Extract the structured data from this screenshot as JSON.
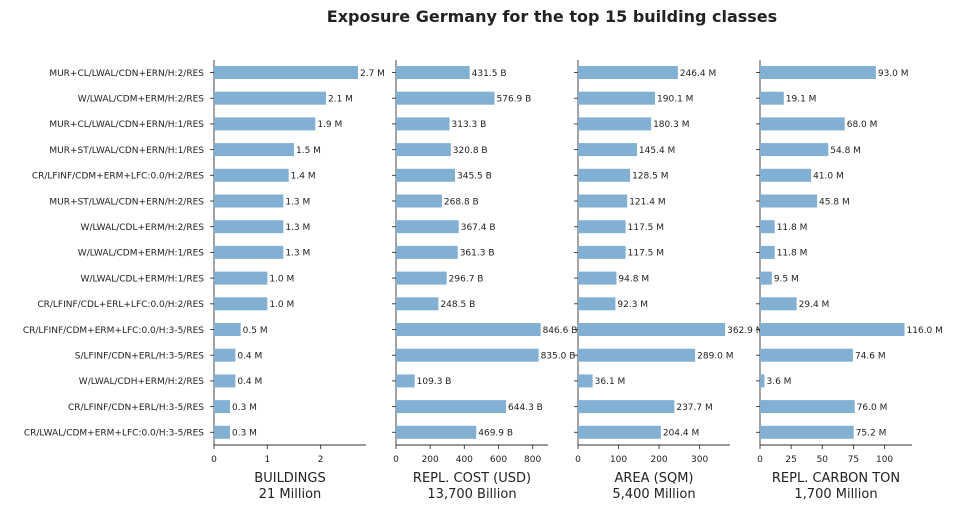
{
  "title": "Exposure Germany for the top 15 building classes",
  "chart_data": {
    "type": "bar",
    "orientation": "horizontal",
    "title": "Exposure Germany for the top 15 building classes",
    "categories": [
      "MUR+CL/LWAL/CDN+ERN/H:2/RES",
      "W/LWAL/CDM+ERM/H:2/RES",
      "MUR+CL/LWAL/CDN+ERN/H:1/RES",
      "MUR+ST/LWAL/CDN+ERN/H:1/RES",
      "CR/LFINF/CDM+ERM+LFC:0.0/H:2/RES",
      "MUR+ST/LWAL/CDN+ERN/H:2/RES",
      "W/LWAL/CDL+ERM/H:2/RES",
      "W/LWAL/CDM+ERM/H:1/RES",
      "W/LWAL/CDL+ERM/H:1/RES",
      "CR/LFINF/CDL+ERL+LFC:0.0/H:2/RES",
      "CR/LFINF/CDM+ERM+LFC:0.0/H:3-5/RES",
      "S/LFINF/CDN+ERL/H:3-5/RES",
      "W/LWAL/CDH+ERM/H:2/RES",
      "CR/LFINF/CDN+ERL/H:3-5/RES",
      "CR/LWAL/CDM+ERM+LFC:0.0/H:3-5/RES"
    ],
    "bar_color": "#81b0d3",
    "panels": [
      {
        "xlabel": "BUILDINGS",
        "total": "21 Million",
        "xlim": [
          0,
          2.85
        ],
        "ticks": [
          0,
          1,
          2
        ],
        "tick_labels": [
          "0",
          "1",
          "2"
        ],
        "values": [
          2.7,
          2.1,
          1.9,
          1.5,
          1.4,
          1.3,
          1.3,
          1.3,
          1.0,
          1.0,
          0.5,
          0.4,
          0.4,
          0.3,
          0.3
        ],
        "labels": [
          "2.7 M",
          "2.1 M",
          "1.9 M",
          "1.5 M",
          "1.4 M",
          "1.3 M",
          "1.3 M",
          "1.3 M",
          "1.0 M",
          "1.0 M",
          "0.5 M",
          "0.4 M",
          "0.4 M",
          "0.3 M",
          "0.3 M"
        ]
      },
      {
        "xlabel": "REPL. COST (USD)",
        "total": "13,700 Billion",
        "xlim": [
          0,
          890
        ],
        "ticks": [
          0,
          200,
          400,
          600,
          800
        ],
        "tick_labels": [
          "0",
          "200",
          "400",
          "600",
          "800"
        ],
        "values": [
          431.5,
          576.9,
          313.3,
          320.8,
          345.5,
          268.8,
          367.4,
          361.3,
          296.7,
          248.5,
          846.6,
          835.0,
          109.3,
          644.3,
          469.9
        ],
        "labels": [
          "431.5 B",
          "576.9 B",
          "313.3 B",
          "320.8 B",
          "345.5 B",
          "268.8 B",
          "367.4 B",
          "361.3 B",
          "296.7 B",
          "248.5 B",
          "846.6 B",
          "835.0 B",
          "109.3 B",
          "644.3 B",
          "469.9 B"
        ]
      },
      {
        "xlabel": "AREA (SQM)",
        "total": "5,400 Million",
        "xlim": [
          0,
          375
        ],
        "ticks": [
          0,
          100,
          200,
          300
        ],
        "tick_labels": [
          "0",
          "100",
          "200",
          "300"
        ],
        "values": [
          246.4,
          190.1,
          180.3,
          145.4,
          128.5,
          121.4,
          117.5,
          117.5,
          94.8,
          92.3,
          362.9,
          289.0,
          36.1,
          237.7,
          204.4
        ],
        "labels": [
          "246.4 M",
          "190.1 M",
          "180.3 M",
          "145.4 M",
          "128.5 M",
          "121.4 M",
          "117.5 M",
          "117.5 M",
          "94.8 M",
          "92.3 M",
          "362.9 M",
          "289.0 M",
          "36.1 M",
          "237.7 M",
          "204.4 M"
        ]
      },
      {
        "xlabel": "REPL. CARBON TON",
        "total": "1,700 Million",
        "xlim": [
          0,
          122
        ],
        "ticks": [
          0,
          25,
          50,
          75,
          100
        ],
        "tick_labels": [
          "0",
          "25",
          "50",
          "75",
          "100"
        ],
        "values": [
          93.0,
          19.1,
          68.0,
          54.8,
          41.0,
          45.8,
          11.8,
          11.8,
          9.5,
          29.4,
          116.0,
          74.6,
          3.6,
          76.0,
          75.2
        ],
        "labels": [
          "93.0 M",
          "19.1 M",
          "68.0 M",
          "54.8 M",
          "41.0 M",
          "45.8 M",
          "11.8 M",
          "11.8 M",
          "9.5 M",
          "29.4 M",
          "116.0 M",
          "74.6 M",
          "3.6 M",
          "76.0 M",
          "75.2 M"
        ]
      }
    ]
  }
}
